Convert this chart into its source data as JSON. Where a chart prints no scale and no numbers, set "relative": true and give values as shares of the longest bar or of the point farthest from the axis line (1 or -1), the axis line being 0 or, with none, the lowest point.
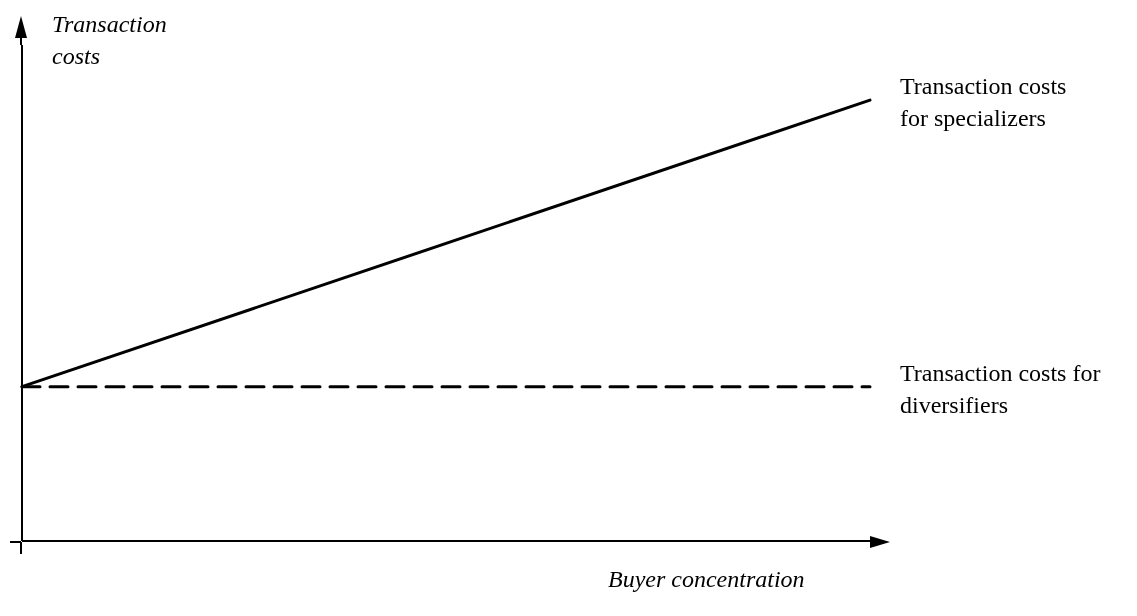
{
  "chart_data": {
    "type": "line",
    "relative": true,
    "xlabel": "Buyer concentration",
    "ylabel": "Transaction costs",
    "categories": [
      null,
      null
    ],
    "marker": "none",
    "series": [
      {
        "name": "Transaction costs for specializers",
        "color": "#000000",
        "line_style": "solid",
        "values": [
          0.35,
          1
        ]
      },
      {
        "name": "Transaction costs for diversifiers",
        "color": "#000000",
        "line_style": "dashed",
        "values": [
          0.35,
          0.35
        ]
      }
    ]
  }
}
